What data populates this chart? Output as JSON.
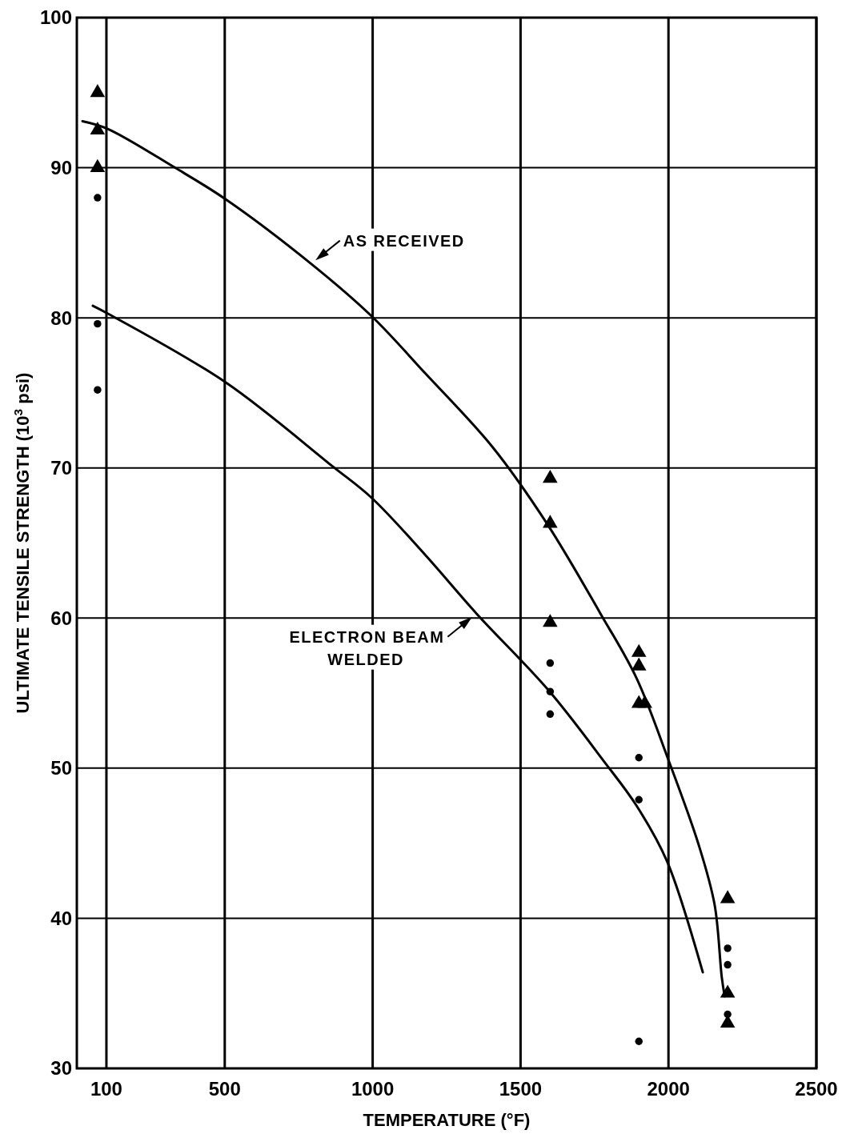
{
  "chart_data": {
    "type": "line",
    "xlabel": "TEMPERATURE (°F)",
    "ylabel": "ULTIMATE TENSILE STRENGTH (10$^{3}$ psi)",
    "xlim": [
      0,
      2500
    ],
    "xticks": [
      100,
      500,
      1000,
      1500,
      2000,
      2500
    ],
    "ylim": [
      30,
      100
    ],
    "yticks": [
      30,
      40,
      50,
      60,
      70,
      80,
      90,
      100
    ],
    "grid": true,
    "series": [
      {
        "type": "line",
        "name": "AS RECEIVED",
        "color": "#000000",
        "marker": "none",
        "line_style": "solid",
        "x": [
          19,
          103,
          332,
          503,
          792,
          997,
          1178,
          1405,
          1589,
          1770,
          1892,
          1997,
          2102,
          2156,
          2180,
          2190
        ],
        "values": [
          93.1,
          92.6,
          90.0,
          87.9,
          83.6,
          80.1,
          76.3,
          71.4,
          66.3,
          60.3,
          56.0,
          50.7,
          44.9,
          40.9,
          36.1,
          34.8
        ]
      },
      {
        "type": "line",
        "name": "ELECTRON BEAM WELDED",
        "color": "#000000",
        "marker": "none",
        "line_style": "solid",
        "x": [
          54,
          103,
          503,
          865,
          997,
          1178,
          1351,
          1594,
          1784,
          1892,
          1995,
          2116
        ],
        "values": [
          80.8,
          80.3,
          75.7,
          70.1,
          68.0,
          64.2,
          60.3,
          55.2,
          50.4,
          47.5,
          43.8,
          36.4
        ]
      },
      {
        "type": "scatter",
        "color": "#000000",
        "marker": "triangle",
        "x": [
          70,
          70,
          70,
          1600,
          1600,
          1600,
          1900,
          1900,
          1900,
          1920,
          2200,
          2200,
          2200
        ],
        "values": [
          95,
          92.5,
          90,
          69.3,
          66.3,
          59.7,
          57.7,
          56.8,
          54.3,
          54.3,
          41.3,
          35.0,
          33.0
        ]
      },
      {
        "type": "scatter",
        "color": "#000000",
        "marker": "circle",
        "x": [
          70,
          70,
          70,
          1600,
          1600,
          1600,
          1900,
          1900,
          1900,
          2200,
          2200,
          2200
        ],
        "values": [
          88.0,
          79.6,
          75.2,
          57.0,
          55.1,
          53.6,
          50.7,
          47.9,
          31.8,
          38.0,
          36.9,
          33.6
        ]
      }
    ]
  }
}
